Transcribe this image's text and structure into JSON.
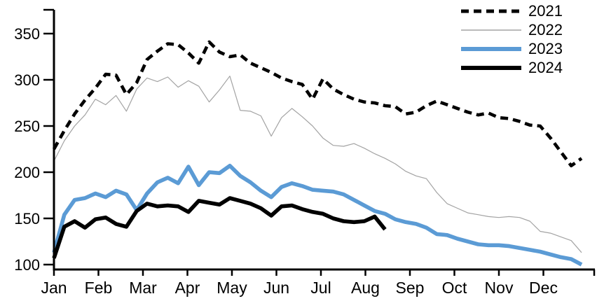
{
  "chart_data": {
    "type": "line",
    "title": "",
    "xlabel": "",
    "ylabel": "",
    "x_unit": "week-of-year",
    "x_tick_labels": [
      "Jan",
      "Feb",
      "Mar",
      "Apr",
      "May",
      "Jun",
      "Jul",
      "Aug",
      "Sep",
      "Oct",
      "Nov",
      "Dec"
    ],
    "y_ticks": [
      100,
      150,
      200,
      250,
      300,
      350
    ],
    "ylim": [
      100,
      375
    ],
    "grid": false,
    "legend_position": "top-right",
    "axis_color": "#000000",
    "notes": "Weekly observations Jan-Dec; 2024 series ends mid-August",
    "series": [
      {
        "name": "2021",
        "color": "#000000",
        "style": "dashed",
        "width": 4.6,
        "values": [
          225,
          245,
          263,
          278,
          291,
          306,
          305,
          284,
          297,
          322,
          331,
          339,
          338,
          329,
          318,
          341,
          330,
          325,
          327,
          318,
          313,
          308,
          302,
          298,
          295,
          279,
          301,
          290,
          284,
          279,
          276,
          275,
          272,
          271,
          263,
          265,
          272,
          277,
          273,
          269,
          265,
          262,
          264,
          259,
          258,
          255,
          251,
          250,
          237,
          222,
          207,
          215
        ]
      },
      {
        "name": "2022",
        "color": "#a3a3a3",
        "style": "solid",
        "width": 1.2,
        "values": [
          212,
          234,
          250,
          262,
          279,
          273,
          283,
          266,
          290,
          302,
          298,
          303,
          292,
          299,
          293,
          276,
          289,
          304,
          267,
          266,
          261,
          239,
          259,
          269,
          260,
          250,
          237,
          229,
          228,
          231,
          226,
          220,
          215,
          209,
          201,
          196,
          193,
          178,
          166,
          161,
          156,
          154,
          152,
          151,
          152,
          151,
          147,
          136,
          134,
          130,
          126,
          113
        ]
      },
      {
        "name": "2023",
        "color": "#5b9bd5",
        "style": "solid",
        "width": 5.6,
        "values": [
          113,
          154,
          170,
          172,
          177,
          173,
          180,
          176,
          159,
          177,
          189,
          194,
          188,
          206,
          186,
          200,
          199,
          207,
          196,
          189,
          180,
          173,
          184,
          188,
          185,
          181,
          180,
          179,
          176,
          170,
          164,
          158,
          155,
          149,
          146,
          144,
          140,
          133,
          132,
          128,
          125,
          122,
          121,
          121,
          120,
          118,
          116,
          114,
          111,
          108,
          106,
          100
        ]
      },
      {
        "name": "2024",
        "color": "#000000",
        "style": "solid",
        "width": 5.6,
        "values": [
          107,
          141,
          147,
          140,
          149,
          151,
          144,
          141,
          158,
          166,
          163,
          164,
          163,
          157,
          169,
          167,
          165,
          172,
          169,
          166,
          161,
          153,
          163,
          164,
          160,
          157,
          155,
          150,
          147,
          146,
          147,
          152,
          138
        ]
      }
    ]
  }
}
